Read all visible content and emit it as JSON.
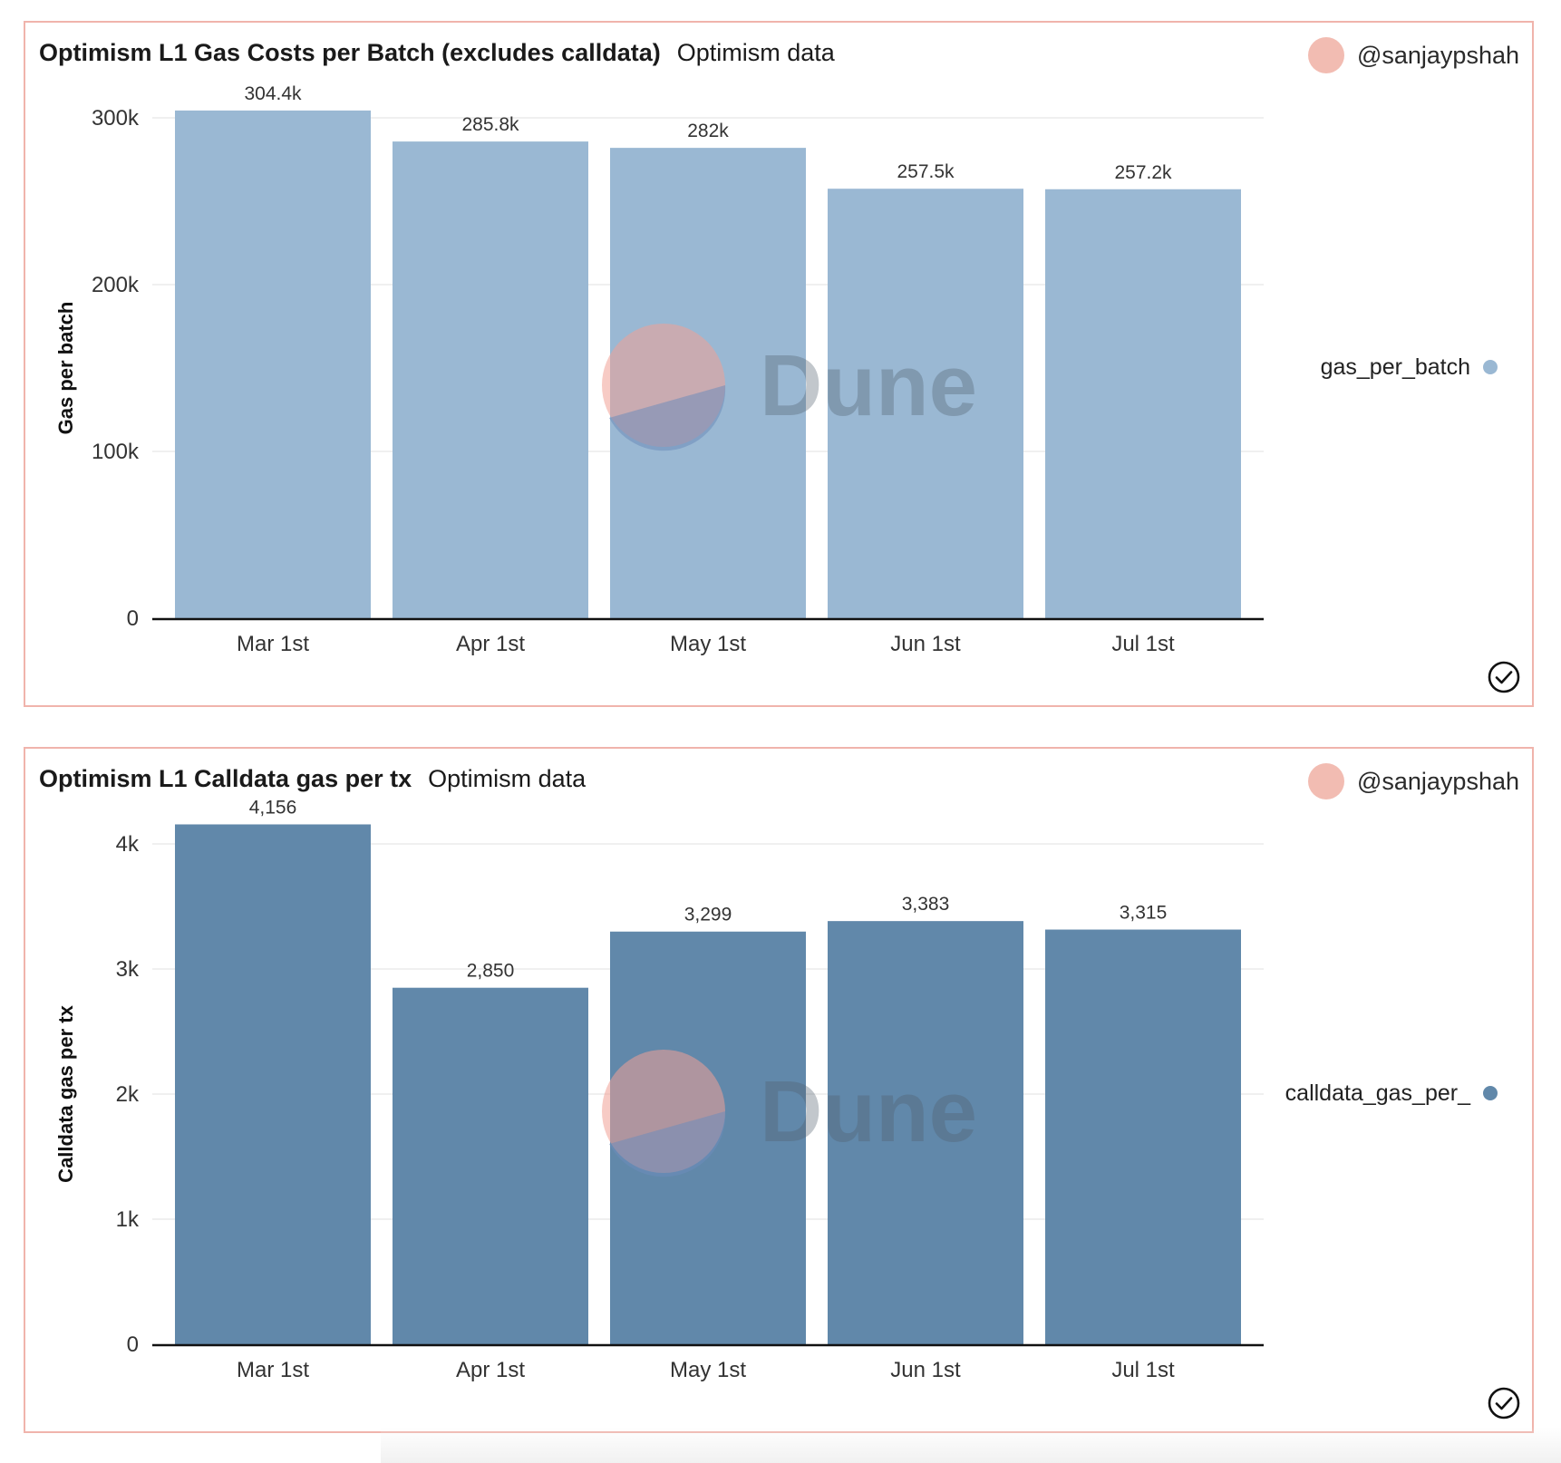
{
  "panels": [
    {
      "title": "Optimism L1 Gas Costs per Batch (excludes calldata)",
      "source": "Optimism data",
      "author": "@sanjaypshah",
      "watermark": "Dune"
    },
    {
      "title": "Optimism L1 Calldata gas per tx",
      "source": "Optimism data",
      "author": "@sanjaypshah",
      "watermark": "Dune"
    }
  ],
  "chart_data": [
    {
      "type": "bar",
      "categories": [
        "Mar 1st",
        "Apr 1st",
        "May 1st",
        "Jun 1st",
        "Jul 1st"
      ],
      "series": [
        {
          "name": "gas_per_batch",
          "values": [
            304400,
            285800,
            282000,
            257500,
            257200
          ],
          "labels": [
            "304.4k",
            "285.8k",
            "282k",
            "257.5k",
            "257.2k"
          ],
          "color": "#9ab8d3"
        }
      ],
      "ylabel": "Gas per batch",
      "ylim": [
        0,
        300000
      ],
      "yticks": [
        0,
        100000,
        200000,
        300000
      ],
      "ytick_labels": [
        "0",
        "100k",
        "200k",
        "300k"
      ],
      "grid": true,
      "legend": "right"
    },
    {
      "type": "bar",
      "categories": [
        "Mar 1st",
        "Apr 1st",
        "May 1st",
        "Jun 1st",
        "Jul 1st"
      ],
      "series": [
        {
          "name": "calldata_gas_per_",
          "values": [
            4156,
            2850,
            3299,
            3383,
            3315
          ],
          "labels": [
            "4,156",
            "2,850",
            "3,299",
            "3,383",
            "3,315"
          ],
          "color": "#6188aa"
        }
      ],
      "ylabel": "Calldata gas per tx",
      "ylim": [
        0,
        4000
      ],
      "yticks": [
        0,
        1000,
        2000,
        3000,
        4000
      ],
      "ytick_labels": [
        "0",
        "1k",
        "2k",
        "3k",
        "4k"
      ],
      "grid": true,
      "legend": "right"
    }
  ],
  "colors": {
    "border": "#f0b4ac",
    "avatar": "#f2bcb2"
  },
  "icons": {
    "avatar": "avatar-icon",
    "status": "check-circle-icon"
  }
}
